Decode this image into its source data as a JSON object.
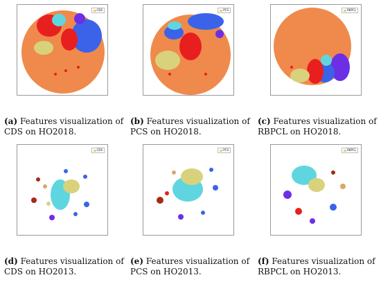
{
  "figures": [
    {
      "label": "(a)",
      "text": "Features visualization of CDS on HO2018.",
      "legend": "CDS"
    },
    {
      "label": "(b)",
      "text": "Features visualization of PCS on HO2018.",
      "legend": "PCS"
    },
    {
      "label": "(c)",
      "text": "Features visualization of RBPCL on HO2018.",
      "legend": "RBPCL"
    },
    {
      "label": "(d)",
      "text": "Features visualization of CDS on HO2013.",
      "legend": "CDS"
    },
    {
      "label": "(e)",
      "text": "Features visualization of PCS on HO2013.",
      "legend": "PCS"
    },
    {
      "label": "(f)",
      "text": "Features visualization of RBPCL on HO2013.",
      "legend": "RBPCL"
    }
  ],
  "colors": {
    "orange": "#ef8a4c",
    "red": "#e81f1f",
    "blue": "#3b63ea",
    "cyan": "#5fd6df",
    "khaki": "#d9d27c",
    "purple": "#6d2fe6",
    "darkred": "#a52a18",
    "tan": "#d8a86a"
  }
}
